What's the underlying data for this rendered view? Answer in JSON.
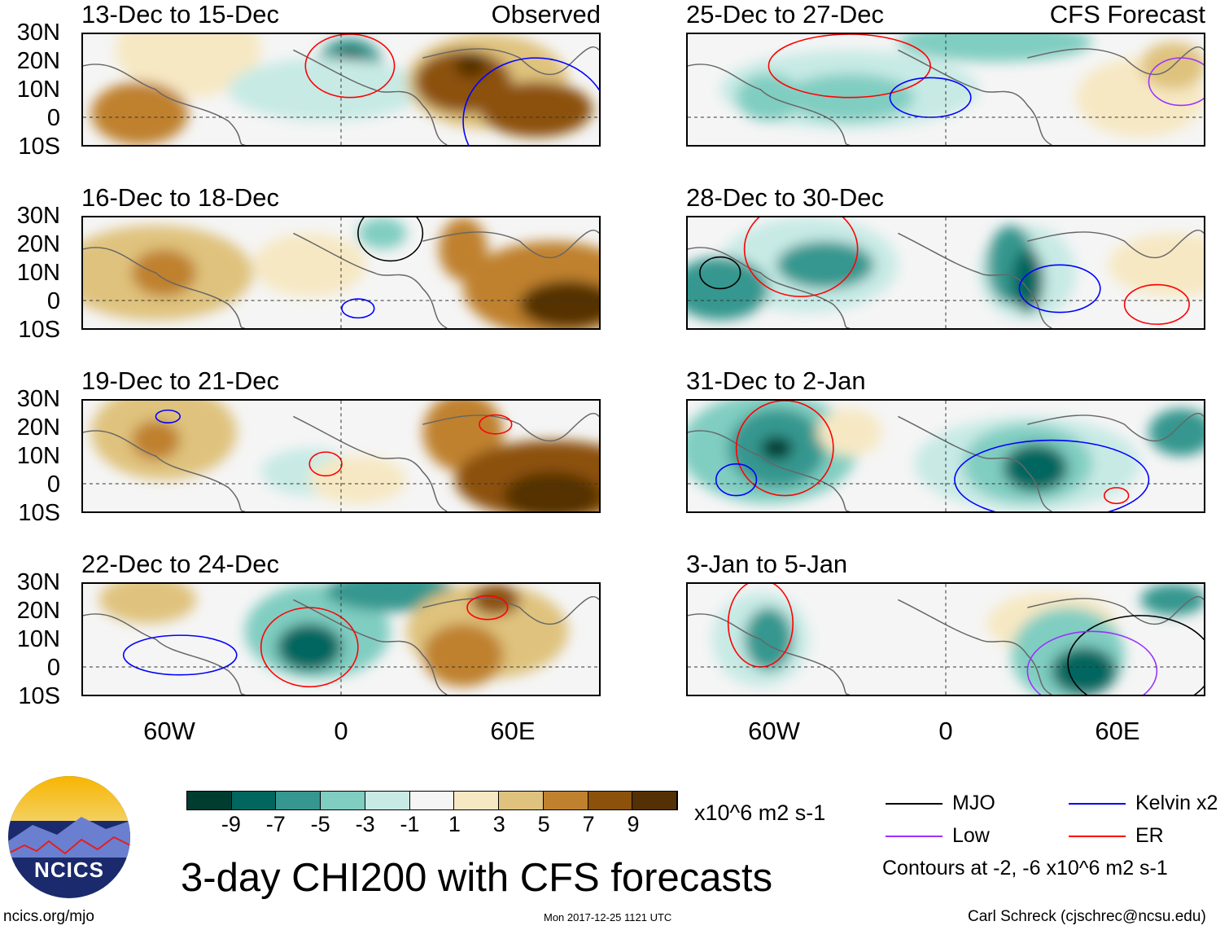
{
  "panels_left": [
    {
      "title": "13-Dec to 15-Dec",
      "tag": "Observed"
    },
    {
      "title": "16-Dec to 18-Dec",
      "tag": ""
    },
    {
      "title": "19-Dec to 21-Dec",
      "tag": ""
    },
    {
      "title": "22-Dec to 24-Dec",
      "tag": ""
    }
  ],
  "panels_right": [
    {
      "title": "25-Dec to 27-Dec",
      "tag": "CFS Forecast"
    },
    {
      "title": "28-Dec to 30-Dec",
      "tag": ""
    },
    {
      "title": "31-Dec to 2-Jan",
      "tag": ""
    },
    {
      "title": "3-Jan to 5-Jan",
      "tag": ""
    }
  ],
  "lat_labels": [
    "30N",
    "20N",
    "10N",
    "0",
    "10S"
  ],
  "lon_labels": [
    "60W",
    "0",
    "60E"
  ],
  "colorbar": {
    "colors": [
      "#003c30",
      "#01665e",
      "#35978f",
      "#80cdc1",
      "#c7eae5",
      "#f5f5f5",
      "#f6e8c3",
      "#dfc27d",
      "#bf812d",
      "#8c510a",
      "#543005"
    ],
    "ticks": [
      "-9",
      "-7",
      "-5",
      "-3",
      "-1",
      "1",
      "3",
      "5",
      "7",
      "9"
    ],
    "units": "x10^6 m2 s-1"
  },
  "legend": {
    "items": [
      {
        "label": "MJO",
        "color": "#000000"
      },
      {
        "label": "Kelvin x2",
        "color": "#0000ff"
      },
      {
        "label": "Low",
        "color": "#9b30ff"
      },
      {
        "label": "ER",
        "color": "#ff0000"
      }
    ],
    "note": "Contours at -2, -6 x10^6 m2 s-1"
  },
  "title": "3-day CHI200 with CFS forecasts",
  "logo_text": "NCICS",
  "footer": {
    "url": "ncics.org/mjo",
    "timestamp": "Mon 2017-12-25 1121 UTC",
    "author": "Carl Schreck (cjschrec@ncsu.edu)"
  }
}
